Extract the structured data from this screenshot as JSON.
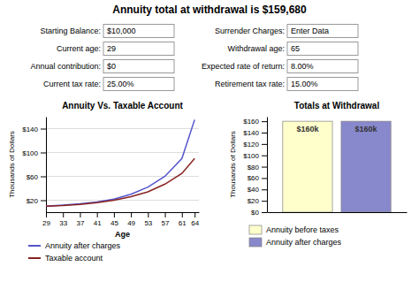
{
  "title": "Annuity total at withdrawal is $159,680",
  "annotations": [
    [
      "Starting Balance:",
      "$10,000"
    ],
    [
      "Current age:",
      "29"
    ],
    [
      "Annual contribution:",
      "$0"
    ],
    [
      "Current tax rate:",
      "25.00%"
    ],
    [
      "Surrender Charges:",
      "Enter Data"
    ],
    [
      "Withdrawal age:",
      "65"
    ],
    [
      "Expected rate of return:",
      "8.00%"
    ],
    [
      "Retirement tax rate:",
      "15.00%"
    ]
  ],
  "chart_data": [
    {
      "type": "line",
      "title": "Annuity Vs. Taxable Account",
      "x_label": "Age",
      "y_label": "Thousands of Dollars",
      "x": [
        29,
        33,
        37,
        41,
        45,
        49,
        53,
        57,
        61,
        64
      ],
      "series": [
        {
          "name": "Annuity after charges",
          "color": "#5555cc",
          "values": [
            10,
            12,
            14,
            17,
            22,
            30,
            42,
            60,
            90,
            155
          ]
        },
        {
          "name": "Taxable account",
          "color": "#882222",
          "values": [
            10,
            11,
            13,
            16,
            20,
            26,
            34,
            47,
            65,
            90
          ]
        }
      ],
      "xlim": [
        29,
        65
      ],
      "xticks": [
        29,
        33,
        37,
        41,
        45,
        49,
        53,
        57,
        61,
        64
      ],
      "ylim": [
        0,
        160
      ],
      "yticks": [
        {
          "value": 20,
          "label": "$20"
        },
        {
          "value": 60,
          "label": "$60"
        },
        {
          "value": 100,
          "label": "$100"
        },
        {
          "value": 140,
          "label": "$140"
        }
      ],
      "grid": true,
      "legend": "bottom"
    },
    {
      "type": "bar",
      "title": "Totals at Withdrawal",
      "y_label": "Thousands of Dollars",
      "categories": [
        null
      ],
      "series": [
        {
          "name": "Annuity before taxes",
          "color": "#ffffcc",
          "values": [
            160
          ],
          "value_labels": [
            "$160k"
          ]
        },
        {
          "name": "Annuity after charges",
          "color": "#8888cc",
          "values": [
            160
          ],
          "value_labels": [
            "$160k"
          ]
        }
      ],
      "ylim": [
        0,
        168
      ],
      "yticks": [
        {
          "value": 0,
          "label": "$0"
        },
        {
          "value": 20,
          "label": "$20"
        },
        {
          "value": 40,
          "label": "$40"
        },
        {
          "value": 60,
          "label": "$60"
        },
        {
          "value": 80,
          "label": "$80"
        },
        {
          "value": 100,
          "label": "$100"
        },
        {
          "value": 120,
          "label": "$120"
        },
        {
          "value": 140,
          "label": "$140"
        },
        {
          "value": 160,
          "label": "$160"
        }
      ],
      "grid": false,
      "data_labels": true,
      "tick_labels": "y",
      "legend": "bottom"
    }
  ]
}
